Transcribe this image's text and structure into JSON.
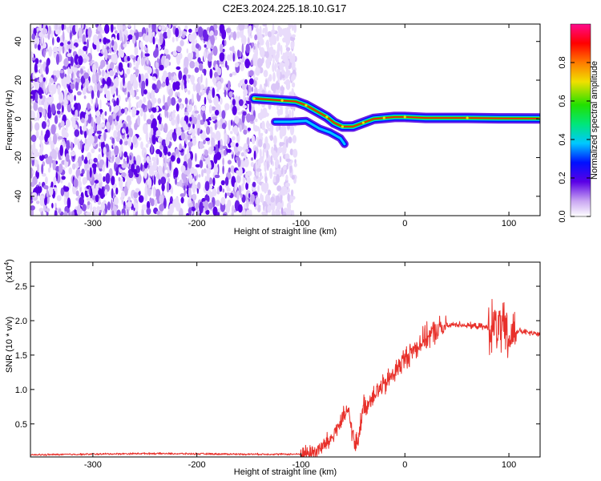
{
  "title": "C2E3.2024.225.18.10.G17",
  "chart_data": [
    {
      "type": "heatmap",
      "xlabel": "Height of straight line (km)",
      "ylabel": "Frequency (Hz)",
      "xlim": [
        -360,
        130
      ],
      "ylim": [
        -50,
        49
      ],
      "xticks": [
        -300,
        -200,
        -100,
        0,
        100
      ],
      "yticks": [
        -40,
        -20,
        0,
        20,
        40
      ],
      "noise_region_x": [
        -360,
        -105
      ],
      "signal_track": [
        {
          "x": -145,
          "y": 10.5
        },
        {
          "x": -130,
          "y": 10
        },
        {
          "x": -118,
          "y": 9.5
        },
        {
          "x": -105,
          "y": 9
        },
        {
          "x": -95,
          "y": 7
        },
        {
          "x": -85,
          "y": 4
        },
        {
          "x": -75,
          "y": 1
        },
        {
          "x": -68,
          "y": -2
        },
        {
          "x": -60,
          "y": -4
        },
        {
          "x": -50,
          "y": -4
        },
        {
          "x": -40,
          "y": -2
        },
        {
          "x": -30,
          "y": 0
        },
        {
          "x": -20,
          "y": 0.5
        },
        {
          "x": -10,
          "y": 1
        },
        {
          "x": 0,
          "y": 1
        },
        {
          "x": 20,
          "y": 0.5
        },
        {
          "x": 60,
          "y": 0.5
        },
        {
          "x": 90,
          "y": 0.3
        },
        {
          "x": 130,
          "y": 0.2
        }
      ],
      "secondary_track": [
        {
          "x": -125,
          "y": -1.5
        },
        {
          "x": -110,
          "y": -1.5
        },
        {
          "x": -95,
          "y": -1
        },
        {
          "x": -82,
          "y": -5
        },
        {
          "x": -72,
          "y": -7
        },
        {
          "x": -62,
          "y": -10
        },
        {
          "x": -58,
          "y": -13
        }
      ],
      "colorbar": {
        "label": "Normalized spectral amplitude",
        "range": [
          0,
          1
        ],
        "ticks": [
          "0.0",
          "0.2",
          "0.4",
          "0.6",
          "0.8"
        ],
        "tick_values": [
          0.0,
          0.2,
          0.4,
          0.6,
          0.8
        ]
      }
    },
    {
      "type": "line",
      "xlabel": "Height of straight line (km)",
      "ylabel": "SNR (10 * v/v)",
      "multiplier_label": "(x10",
      "multiplier_exp": "4",
      "xlim": [
        -360,
        130
      ],
      "ylim": [
        0.02,
        2.85
      ],
      "xticks": [
        -300,
        -200,
        -100,
        0,
        100
      ],
      "yticks": [
        0.5,
        1.0,
        1.5,
        2.0,
        2.5
      ],
      "ytick_labels": [
        "0.5",
        "1.0",
        "1.5",
        "2.0",
        "2.5"
      ],
      "series": [
        {
          "color": "#e8302a",
          "x": [
            -360,
            -250,
            -150,
            -110,
            -100,
            -90,
            -80,
            -70,
            -65,
            -60,
            -55,
            -52,
            -50,
            -48,
            -45,
            -42,
            -40,
            -35,
            -30,
            -25,
            -20,
            -15,
            -10,
            -5,
            0,
            10,
            20,
            30,
            40,
            50,
            60,
            70,
            80,
            90,
            95,
            100,
            103,
            105,
            110,
            120,
            130
          ],
          "y": [
            0.05,
            0.07,
            0.06,
            0.06,
            0.06,
            0.08,
            0.15,
            0.3,
            0.45,
            0.55,
            0.7,
            0.5,
            0.35,
            0.15,
            0.3,
            0.55,
            0.75,
            0.8,
            0.95,
            1.0,
            1.05,
            1.15,
            1.25,
            1.35,
            1.45,
            1.6,
            1.75,
            1.85,
            1.92,
            1.95,
            1.93,
            1.92,
            1.9,
            1.9,
            1.85,
            1.7,
            1.8,
            1.85,
            1.85,
            1.82,
            1.8
          ]
        }
      ]
    }
  ]
}
